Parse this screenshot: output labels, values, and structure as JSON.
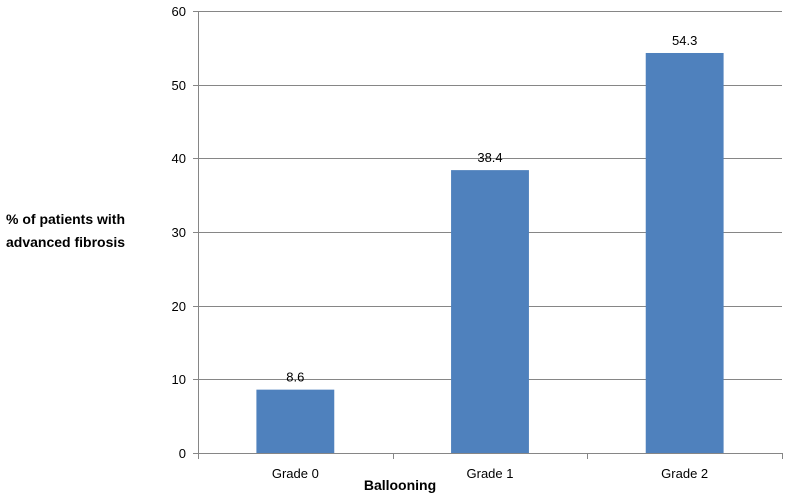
{
  "chart_data": {
    "type": "bar",
    "title": "",
    "categories": [
      "Grade 0",
      "Grade 1",
      "Grade 2"
    ],
    "values": [
      8.6,
      38.4,
      54.3
    ],
    "value_labels": [
      "8.6",
      "38.4",
      "54.3"
    ],
    "xlabel": "Ballooning",
    "ylabel_lines": [
      "% of patients with",
      "advanced fibrosis"
    ],
    "ylim": [
      0,
      60
    ],
    "yticks": [
      0,
      10,
      20,
      30,
      40,
      50,
      60
    ],
    "grid": true,
    "legend": "none",
    "colors": {
      "bar": "#4f81bd",
      "grid": "#868686",
      "axis": "#868686"
    }
  }
}
